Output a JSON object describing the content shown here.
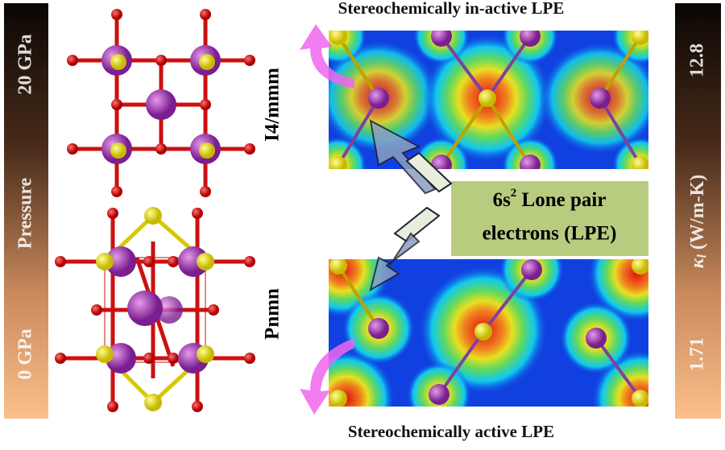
{
  "pressure_bar": {
    "top": "20 GPa",
    "middle": "Pressure",
    "bottom": "0 GPa"
  },
  "kappa_bar": {
    "top": 12.8,
    "symbol": "κ",
    "subscript": "l",
    "unit": "(W/m-K)",
    "bottom": 1.71
  },
  "phases": {
    "upper": "I4/mmm",
    "lower": "Pnmn"
  },
  "captions": {
    "top": "Stereochemically in-active LPE",
    "bottom": "Stereochemically active LPE"
  },
  "callout": {
    "prefix": "6s",
    "superscript": "2",
    "line1_rest": " Lone pair",
    "line2": "electrons (LPE)"
  }
}
